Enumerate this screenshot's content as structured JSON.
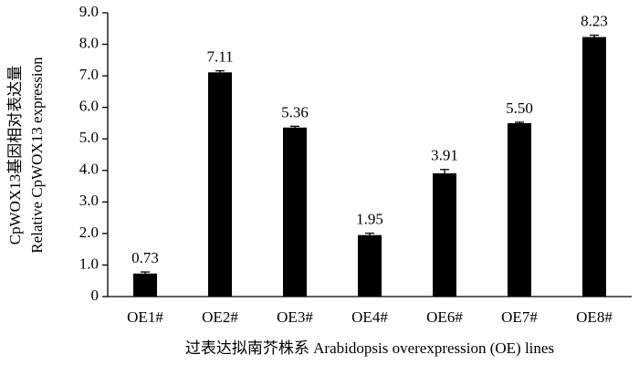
{
  "chart_data": {
    "type": "bar",
    "y_label_lines": [
      "CpWOX13基因相对表达量",
      "Relative CpWOX13 expression"
    ],
    "x_label": "过表达拟南芥株系 Arabidopsis overexpression (OE) lines",
    "categories": [
      "OE1#",
      "OE2#",
      "OE3#",
      "OE4#",
      "OE6#",
      "OE7#",
      "OE8#"
    ],
    "values": [
      0.73,
      7.11,
      5.36,
      1.95,
      3.91,
      5.5,
      8.23
    ],
    "value_labels": [
      "0.73",
      "7.11",
      "5.36",
      "1.95",
      "3.91",
      "5.50",
      "8.23"
    ],
    "errors": [
      0.05,
      0.05,
      0.04,
      0.06,
      0.12,
      0.03,
      0.06
    ],
    "color": "#000000",
    "ylim": [
      0,
      9
    ],
    "yticks": [
      0,
      {
        "value": 1,
        "label": "1.0"
      },
      {
        "value": 2,
        "label": "2.0"
      },
      {
        "value": 3,
        "label": "3.0"
      },
      {
        "value": 4,
        "label": "4.0"
      },
      {
        "value": 5,
        "label": "5.0"
      },
      {
        "value": 6,
        "label": "6.0"
      },
      {
        "value": 7,
        "label": "7.0"
      },
      {
        "value": 8,
        "label": "8.0"
      },
      {
        "value": 9,
        "label": "9.0"
      }
    ],
    "grid": false
  }
}
